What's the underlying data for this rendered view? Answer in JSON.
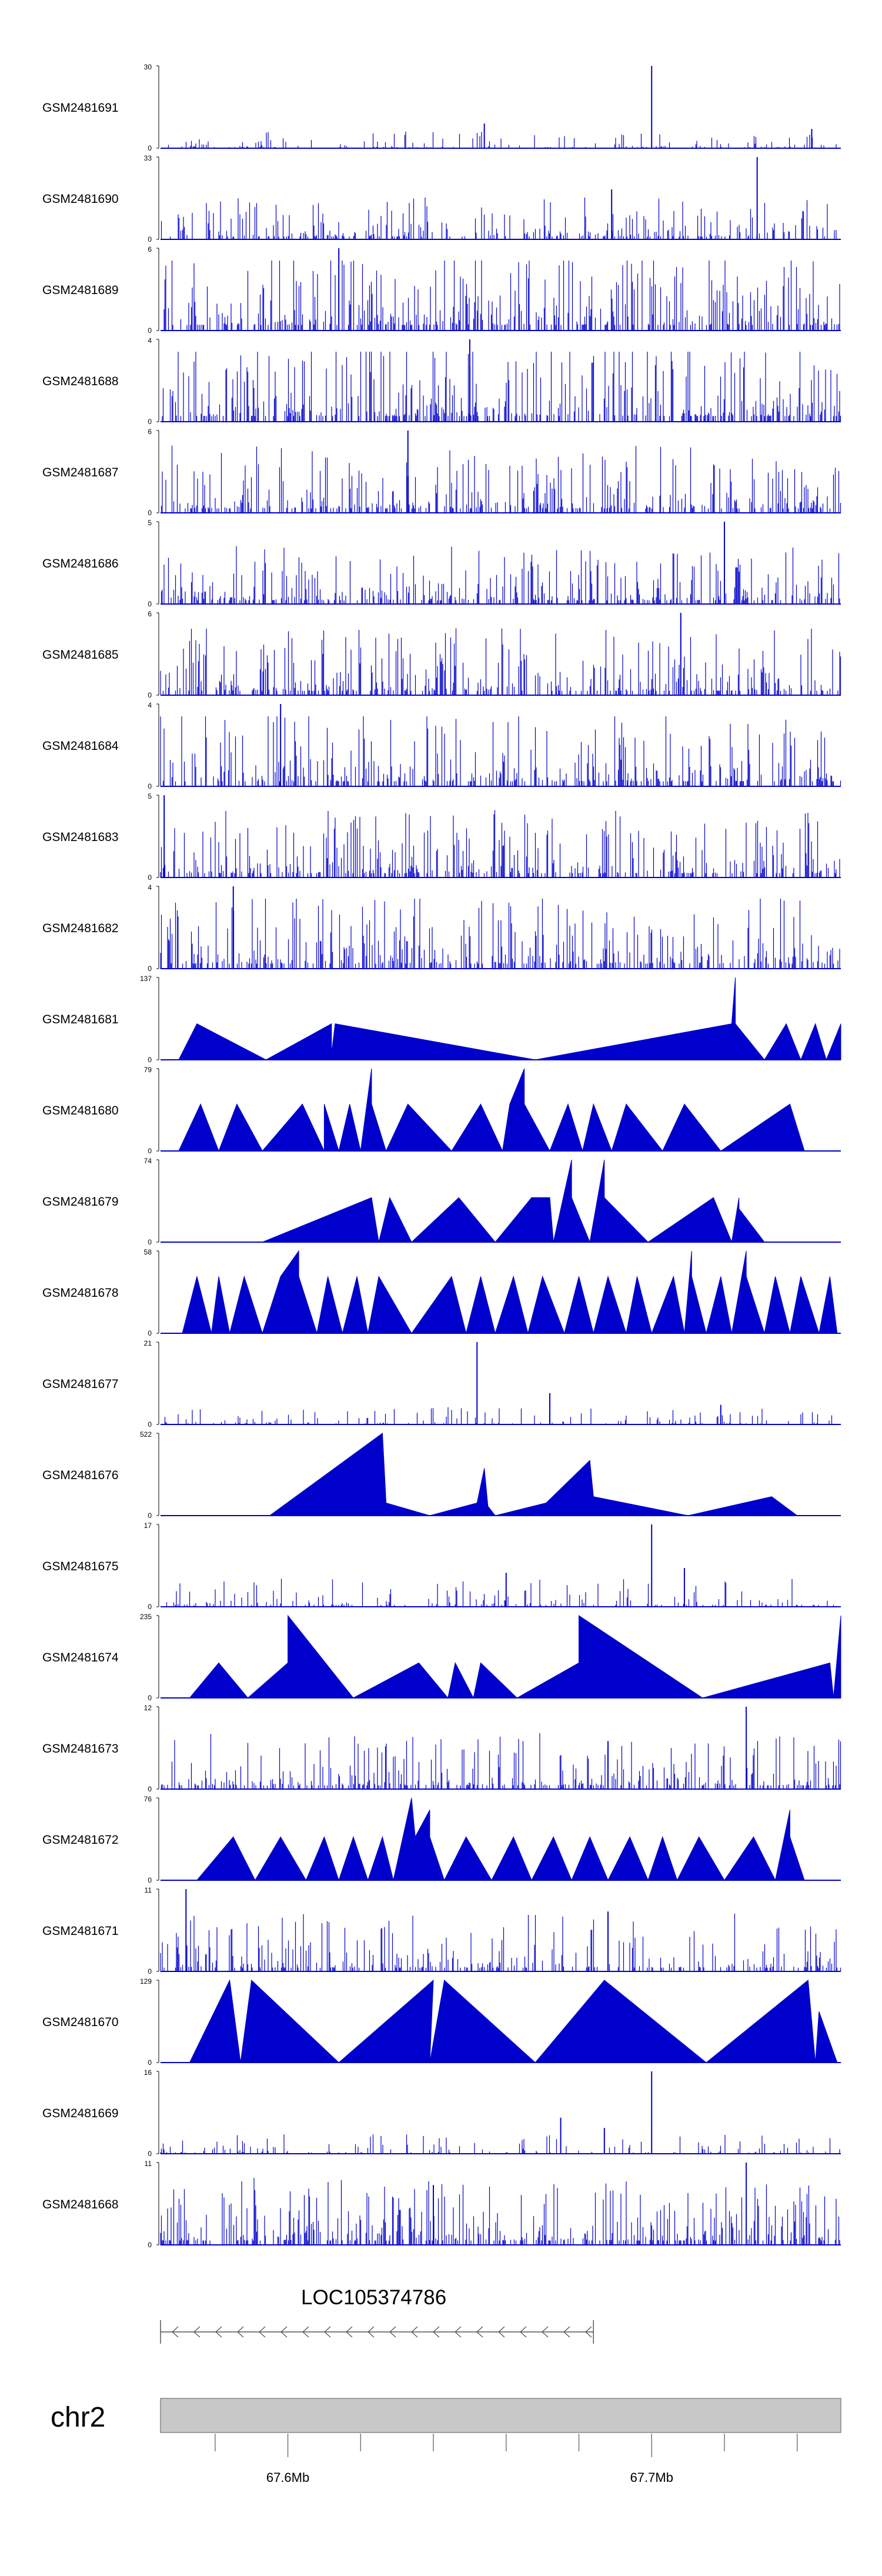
{
  "chart_data": {
    "type": "area",
    "title": "",
    "description_tracks_order": "top to bottom",
    "x_unit": "Mb",
    "xlim": [
      67.565,
      67.752
    ],
    "series_color": "#0000CC",
    "tracks": [
      {
        "name": "GSM2481691",
        "ymax": 30,
        "ymin": 0,
        "style": "dense",
        "density": 0.18,
        "mean_frac": 0.09,
        "peaks": [
          {
            "x": 67.7,
            "y": 30
          },
          {
            "x": 67.654,
            "y": 9
          },
          {
            "x": 67.744,
            "y": 7
          }
        ]
      },
      {
        "name": "GSM2481690",
        "ymax": 33,
        "ymin": 0,
        "style": "dense",
        "density": 0.32,
        "mean_frac": 0.22,
        "peaks": [
          {
            "x": 67.729,
            "y": 33
          },
          {
            "x": 67.689,
            "y": 20
          }
        ]
      },
      {
        "name": "GSM2481689",
        "ymax": 6,
        "ymin": 0,
        "style": "dense",
        "density": 0.45,
        "mean_frac": 0.45,
        "peaks": [
          {
            "x": 67.614,
            "y": 6
          }
        ]
      },
      {
        "name": "GSM2481688",
        "ymax": 4,
        "ymin": 0,
        "style": "dense",
        "density": 0.45,
        "mean_frac": 0.45,
        "peaks": [
          {
            "x": 67.65,
            "y": 4
          }
        ]
      },
      {
        "name": "GSM2481687",
        "ymax": 6,
        "ymin": 0,
        "style": "dense",
        "density": 0.4,
        "mean_frac": 0.35,
        "peaks": [
          {
            "x": 67.633,
            "y": 6
          }
        ]
      },
      {
        "name": "GSM2481686",
        "ymax": 5,
        "ymin": 0,
        "style": "dense",
        "density": 0.4,
        "mean_frac": 0.3,
        "peaks": [
          {
            "x": 67.72,
            "y": 5
          }
        ]
      },
      {
        "name": "GSM2481685",
        "ymax": 6,
        "ymin": 0,
        "style": "dense",
        "density": 0.42,
        "mean_frac": 0.35,
        "peaks": [
          {
            "x": 67.708,
            "y": 6
          }
        ]
      },
      {
        "name": "GSM2481684",
        "ymax": 4,
        "ymin": 0,
        "style": "dense",
        "density": 0.42,
        "mean_frac": 0.4,
        "peaks": [
          {
            "x": 67.598,
            "y": 4
          }
        ]
      },
      {
        "name": "GSM2481683",
        "ymax": 5,
        "ymin": 0,
        "style": "dense",
        "density": 0.42,
        "mean_frac": 0.35,
        "peaks": [
          {
            "x": 67.566,
            "y": 5
          }
        ]
      },
      {
        "name": "GSM2481682",
        "ymax": 4,
        "ymin": 0,
        "style": "dense",
        "density": 0.42,
        "mean_frac": 0.4,
        "peaks": [
          {
            "x": 67.585,
            "y": 4
          }
        ]
      },
      {
        "name": "GSM2481681",
        "ymax": 137,
        "ymin": 0,
        "style": "triangles",
        "points": [
          [
            67.57,
            0
          ],
          [
            67.575,
            60
          ],
          [
            67.594,
            0
          ],
          [
            67.612,
            60
          ],
          [
            67.612,
            10
          ],
          [
            67.613,
            60
          ],
          [
            67.668,
            0
          ],
          [
            67.722,
            60
          ],
          [
            67.723,
            137
          ],
          [
            67.723,
            60
          ],
          [
            67.731,
            0
          ],
          [
            67.737,
            60
          ],
          [
            67.741,
            0
          ],
          [
            67.745,
            60
          ],
          [
            67.748,
            0
          ],
          [
            67.752,
            60
          ]
        ]
      },
      {
        "name": "GSM2481680",
        "ymax": 79,
        "ymin": 0,
        "style": "triangles",
        "points": [
          [
            67.57,
            0
          ],
          [
            67.576,
            45
          ],
          [
            67.581,
            0
          ],
          [
            67.586,
            45
          ],
          [
            67.593,
            0
          ],
          [
            67.604,
            45
          ],
          [
            67.61,
            0
          ],
          [
            67.61,
            45
          ],
          [
            67.614,
            0
          ],
          [
            67.617,
            45
          ],
          [
            67.62,
            0
          ],
          [
            67.623,
            79
          ],
          [
            67.623,
            45
          ],
          [
            67.627,
            0
          ],
          [
            67.633,
            45
          ],
          [
            67.645,
            0
          ],
          [
            67.653,
            45
          ],
          [
            67.659,
            0
          ],
          [
            67.661,
            45
          ],
          [
            67.665,
            79
          ],
          [
            67.665,
            45
          ],
          [
            67.672,
            0
          ],
          [
            67.677,
            45
          ],
          [
            67.681,
            0
          ],
          [
            67.684,
            45
          ],
          [
            67.689,
            0
          ],
          [
            67.693,
            45
          ],
          [
            67.703,
            0
          ],
          [
            67.709,
            45
          ],
          [
            67.719,
            0
          ],
          [
            67.738,
            45
          ],
          [
            67.742,
            0
          ]
        ]
      },
      {
        "name": "GSM2481679",
        "ymax": 74,
        "ymin": 0,
        "style": "triangles",
        "points": [
          [
            67.593,
            0
          ],
          [
            67.623,
            40
          ],
          [
            67.625,
            0
          ],
          [
            67.628,
            40
          ],
          [
            67.634,
            0
          ],
          [
            67.647,
            40
          ],
          [
            67.657,
            0
          ],
          [
            67.667,
            40
          ],
          [
            67.672,
            40
          ],
          [
            67.673,
            0
          ],
          [
            67.678,
            74
          ],
          [
            67.678,
            40
          ],
          [
            67.683,
            0
          ],
          [
            67.687,
            74
          ],
          [
            67.687,
            40
          ],
          [
            67.699,
            0
          ],
          [
            67.717,
            40
          ],
          [
            67.722,
            0
          ],
          [
            67.724,
            40
          ],
          [
            67.724,
            30
          ],
          [
            67.731,
            0
          ]
        ]
      },
      {
        "name": "GSM2481678",
        "ymax": 58,
        "ymin": 0,
        "style": "triangles",
        "points": [
          [
            67.571,
            0
          ],
          [
            67.575,
            40
          ],
          [
            67.579,
            0
          ],
          [
            67.581,
            40
          ],
          [
            67.584,
            0
          ],
          [
            67.588,
            40
          ],
          [
            67.593,
            0
          ],
          [
            67.598,
            40
          ],
          [
            67.603,
            58
          ],
          [
            67.603,
            40
          ],
          [
            67.608,
            0
          ],
          [
            67.611,
            40
          ],
          [
            67.615,
            0
          ],
          [
            67.619,
            40
          ],
          [
            67.622,
            0
          ],
          [
            67.625,
            40
          ],
          [
            67.634,
            0
          ],
          [
            67.645,
            40
          ],
          [
            67.649,
            0
          ],
          [
            67.653,
            40
          ],
          [
            67.657,
            0
          ],
          [
            67.662,
            40
          ],
          [
            67.666,
            0
          ],
          [
            67.67,
            40
          ],
          [
            67.676,
            0
          ],
          [
            67.68,
            40
          ],
          [
            67.684,
            0
          ],
          [
            67.688,
            40
          ],
          [
            67.693,
            0
          ],
          [
            67.696,
            40
          ],
          [
            67.7,
            0
          ],
          [
            67.706,
            40
          ],
          [
            67.709,
            0
          ],
          [
            67.711,
            58
          ],
          [
            67.711,
            40
          ],
          [
            67.715,
            0
          ],
          [
            67.719,
            40
          ],
          [
            67.722,
            0
          ],
          [
            67.726,
            58
          ],
          [
            67.726,
            40
          ],
          [
            67.731,
            0
          ],
          [
            67.734,
            40
          ],
          [
            67.738,
            0
          ],
          [
            67.741,
            40
          ],
          [
            67.746,
            0
          ],
          [
            67.749,
            40
          ],
          [
            67.751,
            0
          ]
        ]
      },
      {
        "name": "GSM2481677",
        "ymax": 21,
        "ymin": 0,
        "style": "dense",
        "density": 0.16,
        "mean_frac": 0.09,
        "peaks": [
          {
            "x": 67.652,
            "y": 21
          },
          {
            "x": 67.672,
            "y": 8
          },
          {
            "x": 67.719,
            "y": 5
          }
        ]
      },
      {
        "name": "GSM2481676",
        "ymax": 522,
        "ymin": 0,
        "style": "triangles",
        "points": [
          [
            67.595,
            0
          ],
          [
            67.626,
            522
          ],
          [
            67.627,
            80
          ],
          [
            67.639,
            0
          ],
          [
            67.652,
            80
          ],
          [
            67.654,
            300
          ],
          [
            67.655,
            60
          ],
          [
            67.657,
            0
          ],
          [
            67.671,
            80
          ],
          [
            67.683,
            350
          ],
          [
            67.684,
            120
          ],
          [
            67.71,
            0
          ],
          [
            67.733,
            120
          ],
          [
            67.74,
            0
          ]
        ]
      },
      {
        "name": "GSM2481675",
        "ymax": 17,
        "ymin": 0,
        "style": "dense",
        "density": 0.22,
        "mean_frac": 0.15,
        "peaks": [
          {
            "x": 67.7,
            "y": 17
          },
          {
            "x": 67.709,
            "y": 8
          },
          {
            "x": 67.66,
            "y": 7
          }
        ]
      },
      {
        "name": "GSM2481674",
        "ymax": 235,
        "ymin": 0,
        "style": "triangles",
        "points": [
          [
            67.573,
            0
          ],
          [
            67.581,
            100
          ],
          [
            67.589,
            0
          ],
          [
            67.6,
            100
          ],
          [
            67.6,
            235
          ],
          [
            67.618,
            0
          ],
          [
            67.636,
            100
          ],
          [
            67.644,
            0
          ],
          [
            67.646,
            100
          ],
          [
            67.651,
            0
          ],
          [
            67.653,
            100
          ],
          [
            67.663,
            0
          ],
          [
            67.68,
            100
          ],
          [
            67.68,
            235
          ],
          [
            67.714,
            0
          ],
          [
            67.749,
            100
          ],
          [
            67.75,
            0
          ],
          [
            67.752,
            235
          ]
        ]
      },
      {
        "name": "GSM2481673",
        "ymax": 12,
        "ymin": 0,
        "style": "dense",
        "density": 0.4,
        "mean_frac": 0.3,
        "peaks": [
          {
            "x": 67.726,
            "y": 12
          },
          {
            "x": 67.688,
            "y": 7
          }
        ]
      },
      {
        "name": "GSM2481672",
        "ymax": 76,
        "ymin": 0,
        "style": "triangles",
        "points": [
          [
            67.575,
            0
          ],
          [
            67.585,
            40
          ],
          [
            67.591,
            0
          ],
          [
            67.598,
            40
          ],
          [
            67.605,
            0
          ],
          [
            67.61,
            40
          ],
          [
            67.614,
            0
          ],
          [
            67.618,
            40
          ],
          [
            67.622,
            0
          ],
          [
            67.626,
            40
          ],
          [
            67.629,
            0
          ],
          [
            67.634,
            76
          ],
          [
            67.635,
            40
          ],
          [
            67.639,
            65
          ],
          [
            67.639,
            40
          ],
          [
            67.643,
            0
          ],
          [
            67.649,
            40
          ],
          [
            67.656,
            0
          ],
          [
            67.662,
            40
          ],
          [
            67.667,
            0
          ],
          [
            67.673,
            40
          ],
          [
            67.678,
            0
          ],
          [
            67.683,
            40
          ],
          [
            67.688,
            0
          ],
          [
            67.694,
            40
          ],
          [
            67.699,
            0
          ],
          [
            67.703,
            40
          ],
          [
            67.707,
            0
          ],
          [
            67.713,
            40
          ],
          [
            67.72,
            0
          ],
          [
            67.728,
            40
          ],
          [
            67.734,
            0
          ],
          [
            67.738,
            65
          ],
          [
            67.738,
            40
          ],
          [
            67.742,
            0
          ]
        ]
      },
      {
        "name": "GSM2481671",
        "ymax": 11,
        "ymin": 0,
        "style": "dense",
        "density": 0.38,
        "mean_frac": 0.3,
        "peaks": [
          {
            "x": 67.572,
            "y": 11
          },
          {
            "x": 67.688,
            "y": 8
          }
        ]
      },
      {
        "name": "GSM2481670",
        "ymax": 129,
        "ymin": 0,
        "style": "triangles",
        "points": [
          [
            67.573,
            0
          ],
          [
            67.584,
            129
          ],
          [
            67.587,
            0
          ],
          [
            67.59,
            129
          ],
          [
            67.614,
            0
          ],
          [
            67.64,
            129
          ],
          [
            67.639,
            0
          ],
          [
            67.643,
            129
          ],
          [
            67.668,
            0
          ],
          [
            67.687,
            129
          ],
          [
            67.715,
            0
          ],
          [
            67.743,
            129
          ],
          [
            67.745,
            0
          ],
          [
            67.746,
            80
          ],
          [
            67.751,
            0
          ]
        ]
      },
      {
        "name": "GSM2481669",
        "ymax": 16,
        "ymin": 0,
        "style": "dense",
        "density": 0.16,
        "mean_frac": 0.1,
        "peaks": [
          {
            "x": 67.7,
            "y": 16
          },
          {
            "x": 67.675,
            "y": 7
          },
          {
            "x": 67.687,
            "y": 5
          }
        ]
      },
      {
        "name": "GSM2481668",
        "ymax": 11,
        "ymin": 0,
        "style": "dense",
        "density": 0.42,
        "mean_frac": 0.35,
        "peaks": [
          {
            "x": 67.726,
            "y": 11
          },
          {
            "x": 67.64,
            "y": 8
          }
        ]
      }
    ],
    "gene": {
      "name": "LOC105374786",
      "start": 67.565,
      "end": 67.684,
      "strand": "-"
    },
    "chromosome": {
      "name": "chr2"
    },
    "ticks": [
      67.58,
      67.6,
      67.62,
      67.64,
      67.66,
      67.68,
      67.7,
      67.72,
      67.74
    ],
    "tick_labels": {
      "67.6": "67.6Mb",
      "67.7": "67.7Mb"
    }
  }
}
